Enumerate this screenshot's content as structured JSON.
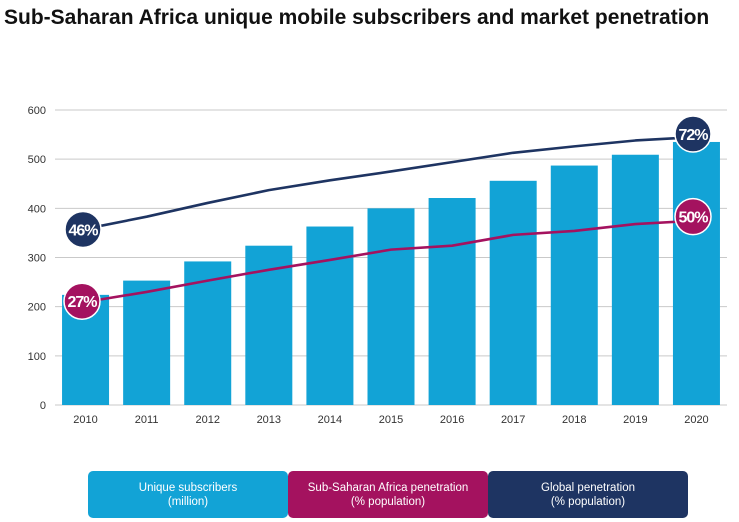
{
  "title": "Sub-Saharan Africa unique mobile subscribers and market penetration",
  "colors": {
    "bar": "#12a3d6",
    "ssa_line": "#a4125f",
    "global_line": "#1e3462",
    "grid": "#c9c9c9",
    "axis_text": "#333333"
  },
  "legend": [
    {
      "line1": "Unique subscribers",
      "line2": "(million)",
      "color": "#12a3d6"
    },
    {
      "line1": "Sub-Saharan Africa penetration",
      "line2": "(% population)",
      "color": "#a4125f"
    },
    {
      "line1": "Global penetration",
      "line2": "(% population)",
      "color": "#1e3462"
    }
  ],
  "chart_data": {
    "type": "bar",
    "title": "Sub-Saharan Africa unique mobile subscribers and market penetration",
    "categories": [
      "2010",
      "2011",
      "2012",
      "2013",
      "2014",
      "2015",
      "2016",
      "2017",
      "2018",
      "2019",
      "2020"
    ],
    "ylim": [
      0,
      600
    ],
    "yticks": [
      0,
      100,
      200,
      300,
      400,
      500,
      600
    ],
    "grid": true,
    "series": [
      {
        "name": "Unique subscribers (million)",
        "kind": "bar",
        "values": [
          224,
          253,
          292,
          324,
          363,
          400,
          421,
          456,
          487,
          509,
          535
        ]
      },
      {
        "name": "Sub-Saharan Africa penetration (% population)",
        "kind": "line",
        "values": [
          27,
          29.5,
          32,
          34.5,
          37,
          40,
          41,
          44,
          45,
          47.5,
          50
        ],
        "scale_values": [
          207,
          230,
          253,
          275,
          295,
          316,
          324,
          346,
          354,
          368,
          375
        ],
        "endpoint_labels": [
          "27%",
          "50%"
        ]
      },
      {
        "name": "Global penetration (% population)",
        "kind": "line",
        "values": [
          46,
          49,
          52,
          55,
          57,
          59,
          62,
          64,
          66,
          68,
          72
        ],
        "scale_values": [
          355,
          383,
          411,
          437,
          457,
          475,
          494,
          513,
          526,
          538,
          545
        ],
        "endpoint_labels": [
          "46%",
          "72%"
        ]
      }
    ]
  }
}
